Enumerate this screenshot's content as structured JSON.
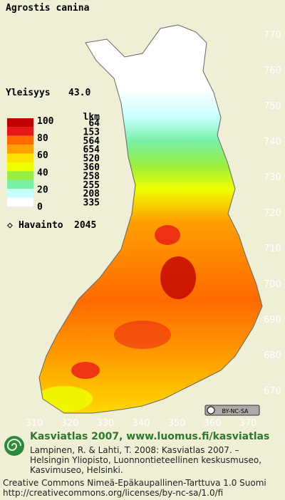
{
  "title": "Agrostis canina",
  "frequency": {
    "label": "Yleisyys",
    "value": 43.0,
    "value_label": "43.0"
  },
  "legend": {
    "count_header": "lkm",
    "scale_labels": [
      100,
      80,
      60,
      40,
      20,
      0
    ],
    "classes": [
      {
        "color": "#c00000",
        "count": 64
      },
      {
        "color": "#e81818",
        "count": 153
      },
      {
        "color": "#ff6a00",
        "count": 564
      },
      {
        "color": "#ffa000",
        "count": 654
      },
      {
        "color": "#ffe000",
        "count": 520
      },
      {
        "color": "#eeff00",
        "count": 360
      },
      {
        "color": "#98ee40",
        "count": 258
      },
      {
        "color": "#78f0a8",
        "count": 255
      },
      {
        "color": "#c8ffff",
        "count": 208
      },
      {
        "color": "#ffffff",
        "count": 335
      }
    ]
  },
  "observations": {
    "label": "Havainto",
    "value": 2045
  },
  "yticks": [
    770,
    760,
    750,
    740,
    730,
    720,
    710,
    700,
    690,
    680,
    670
  ],
  "xticks": [
    310,
    320,
    330,
    340,
    350,
    360,
    370
  ],
  "license_badge": "BY-NC-SA",
  "footer": {
    "heading": "Kasviatlas 2007, www.luomus.fi/kasviatlas",
    "citation": [
      "Lampinen, R. & Lahti, T. 2008: Kasviatlas 2007. –",
      "Helsingin Yliopisto, Luonnontieteellinen keskusmuseo,",
      "Kasvimuseo, Helsinki."
    ],
    "license": [
      "Creative Commons Nimeä-Epäkaupallinen-Tarttuva 1.0 Suomi",
      "http://creativecommons.org/licenses/by-nc-sa/1.0/fi"
    ]
  }
}
